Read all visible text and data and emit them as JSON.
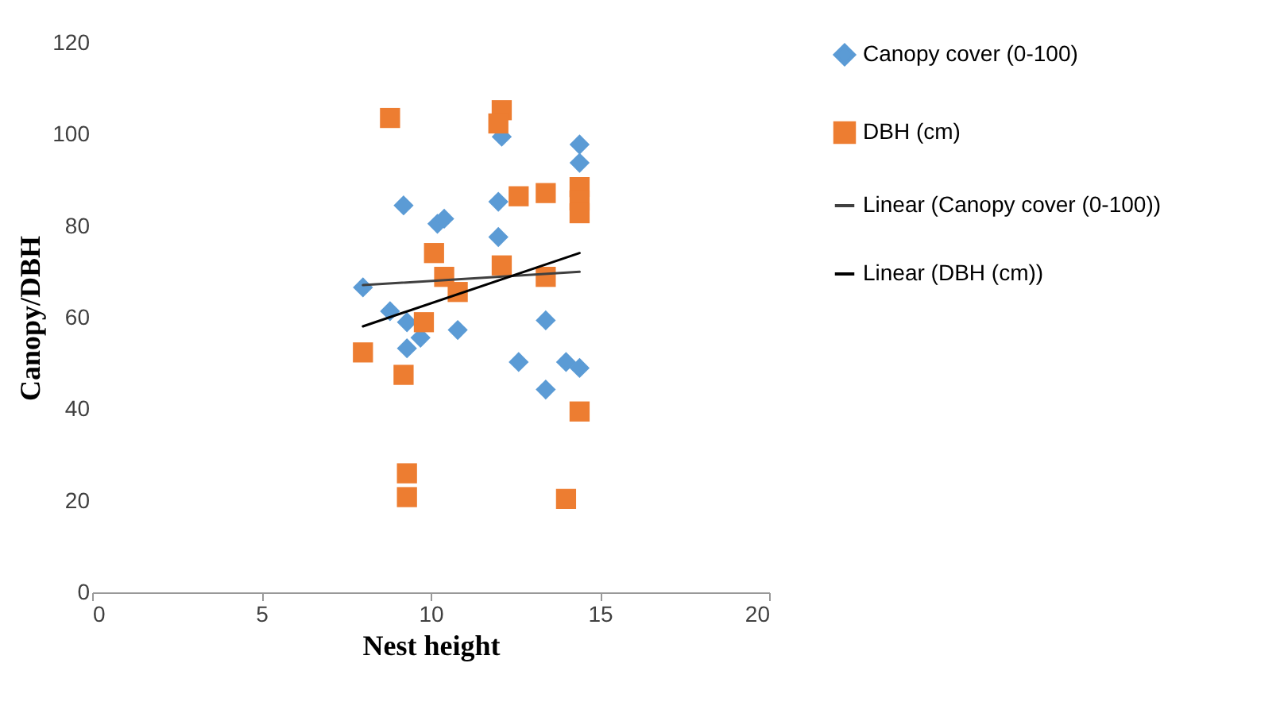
{
  "chart_data": {
    "type": "scatter",
    "xlabel": "Nest height",
    "ylabel": "Canopy/DBH",
    "xlim": [
      0,
      20
    ],
    "xticks": [
      0,
      5,
      10,
      15,
      20
    ],
    "ylim": [
      0,
      120
    ],
    "yticks": [
      0,
      20,
      40,
      60,
      80,
      100,
      120
    ],
    "grid": false,
    "legend": "right",
    "series": [
      {
        "name": "Canopy cover (0-100)",
        "marker": "diamond",
        "color": "#5b9bd5",
        "x": [
          8.0,
          8.8,
          9.2,
          9.3,
          9.3,
          9.7,
          10.2,
          10.4,
          10.8,
          12.0,
          12.0,
          12.1,
          12.6,
          13.4,
          13.4,
          14.0,
          14.4,
          14.4,
          14.4
        ],
        "values": [
          66.6,
          61.4,
          84.5,
          59.0,
          53.3,
          55.6,
          80.5,
          81.6,
          57.3,
          77.6,
          85.3,
          99.5,
          50.3,
          59.4,
          44.3,
          50.3,
          49.0,
          97.8,
          93.8
        ]
      },
      {
        "name": "DBH (cm)",
        "marker": "square",
        "color": "#ed7d31",
        "x": [
          8.8,
          8.0,
          9.2,
          9.3,
          9.3,
          9.8,
          10.1,
          10.4,
          10.8,
          12.1,
          12.0,
          12.1,
          12.6,
          13.4,
          13.4,
          14.4,
          14.4,
          14.4,
          14.4,
          14.0
        ],
        "values": [
          103.6,
          52.4,
          47.5,
          26.0,
          20.8,
          59.0,
          74.1,
          68.9,
          65.6,
          105.3,
          102.4,
          71.4,
          86.5,
          87.2,
          68.9,
          88.5,
          85.6,
          82.8,
          39.5,
          20.4
        ]
      },
      {
        "name": "Linear (Canopy cover (0-100))",
        "type": "line",
        "color": "#404040",
        "x": [
          8.0,
          14.4
        ],
        "values": [
          67.1,
          70.0
        ]
      },
      {
        "name": "Linear (DBH (cm))",
        "type": "line",
        "color": "#000000",
        "x": [
          8.0,
          14.4
        ],
        "values": [
          58.1,
          74.1
        ]
      }
    ]
  }
}
